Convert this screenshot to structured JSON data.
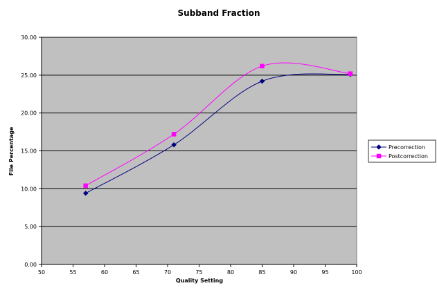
{
  "chart_data": {
    "type": "line",
    "title": "Subband Fraction",
    "xlabel": "Quality Setting",
    "ylabel": "File Percentage",
    "xlim": [
      50,
      100
    ],
    "ylim": [
      0,
      30
    ],
    "x_ticks": [
      "50",
      "55",
      "60",
      "65",
      "70",
      "75",
      "80",
      "85",
      "90",
      "95",
      "100"
    ],
    "y_ticks": [
      "0.00",
      "5.00",
      "10.00",
      "15.00",
      "20.00",
      "25.00",
      "30.00"
    ],
    "x": [
      57,
      71,
      85,
      99
    ],
    "series": [
      {
        "name": "Precorrection",
        "values": [
          9.4,
          15.8,
          24.2,
          25.1
        ],
        "color": "#000080",
        "marker": "diamond"
      },
      {
        "name": "Postcorrection",
        "values": [
          10.4,
          17.2,
          26.2,
          25.2
        ],
        "color": "#ff00ff",
        "marker": "square"
      }
    ],
    "grid": "horizontal",
    "smoothed": true,
    "plot_background": "#c0c0c0",
    "legend_position": "right"
  }
}
